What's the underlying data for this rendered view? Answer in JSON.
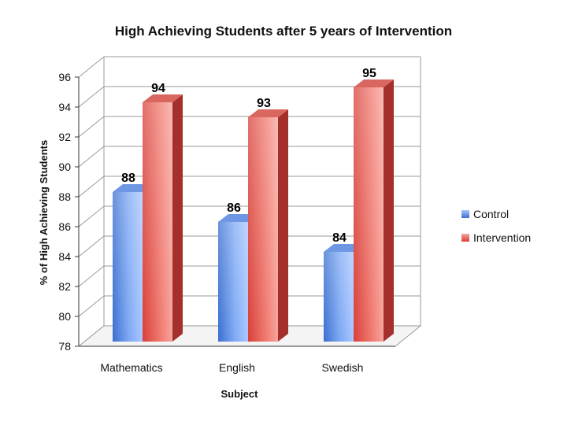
{
  "chart_data": {
    "type": "bar",
    "title": "High Achieving Students after 5 years of Intervention",
    "xlabel": "Subject",
    "ylabel": "% of High Achieving Students",
    "categories": [
      "Mathematics",
      "English",
      "Swedish"
    ],
    "series": [
      {
        "name": "Control",
        "values": [
          88,
          86,
          84
        ],
        "color": "#5B8FE0"
      },
      {
        "name": "Intervention",
        "values": [
          94,
          93,
          95
        ],
        "color": "#E0534A"
      }
    ],
    "ylim": [
      78,
      96
    ],
    "yticks": [
      78,
      80,
      82,
      84,
      86,
      88,
      90,
      92,
      94,
      96
    ],
    "grid": true,
    "legend": "right",
    "style": "3d"
  }
}
